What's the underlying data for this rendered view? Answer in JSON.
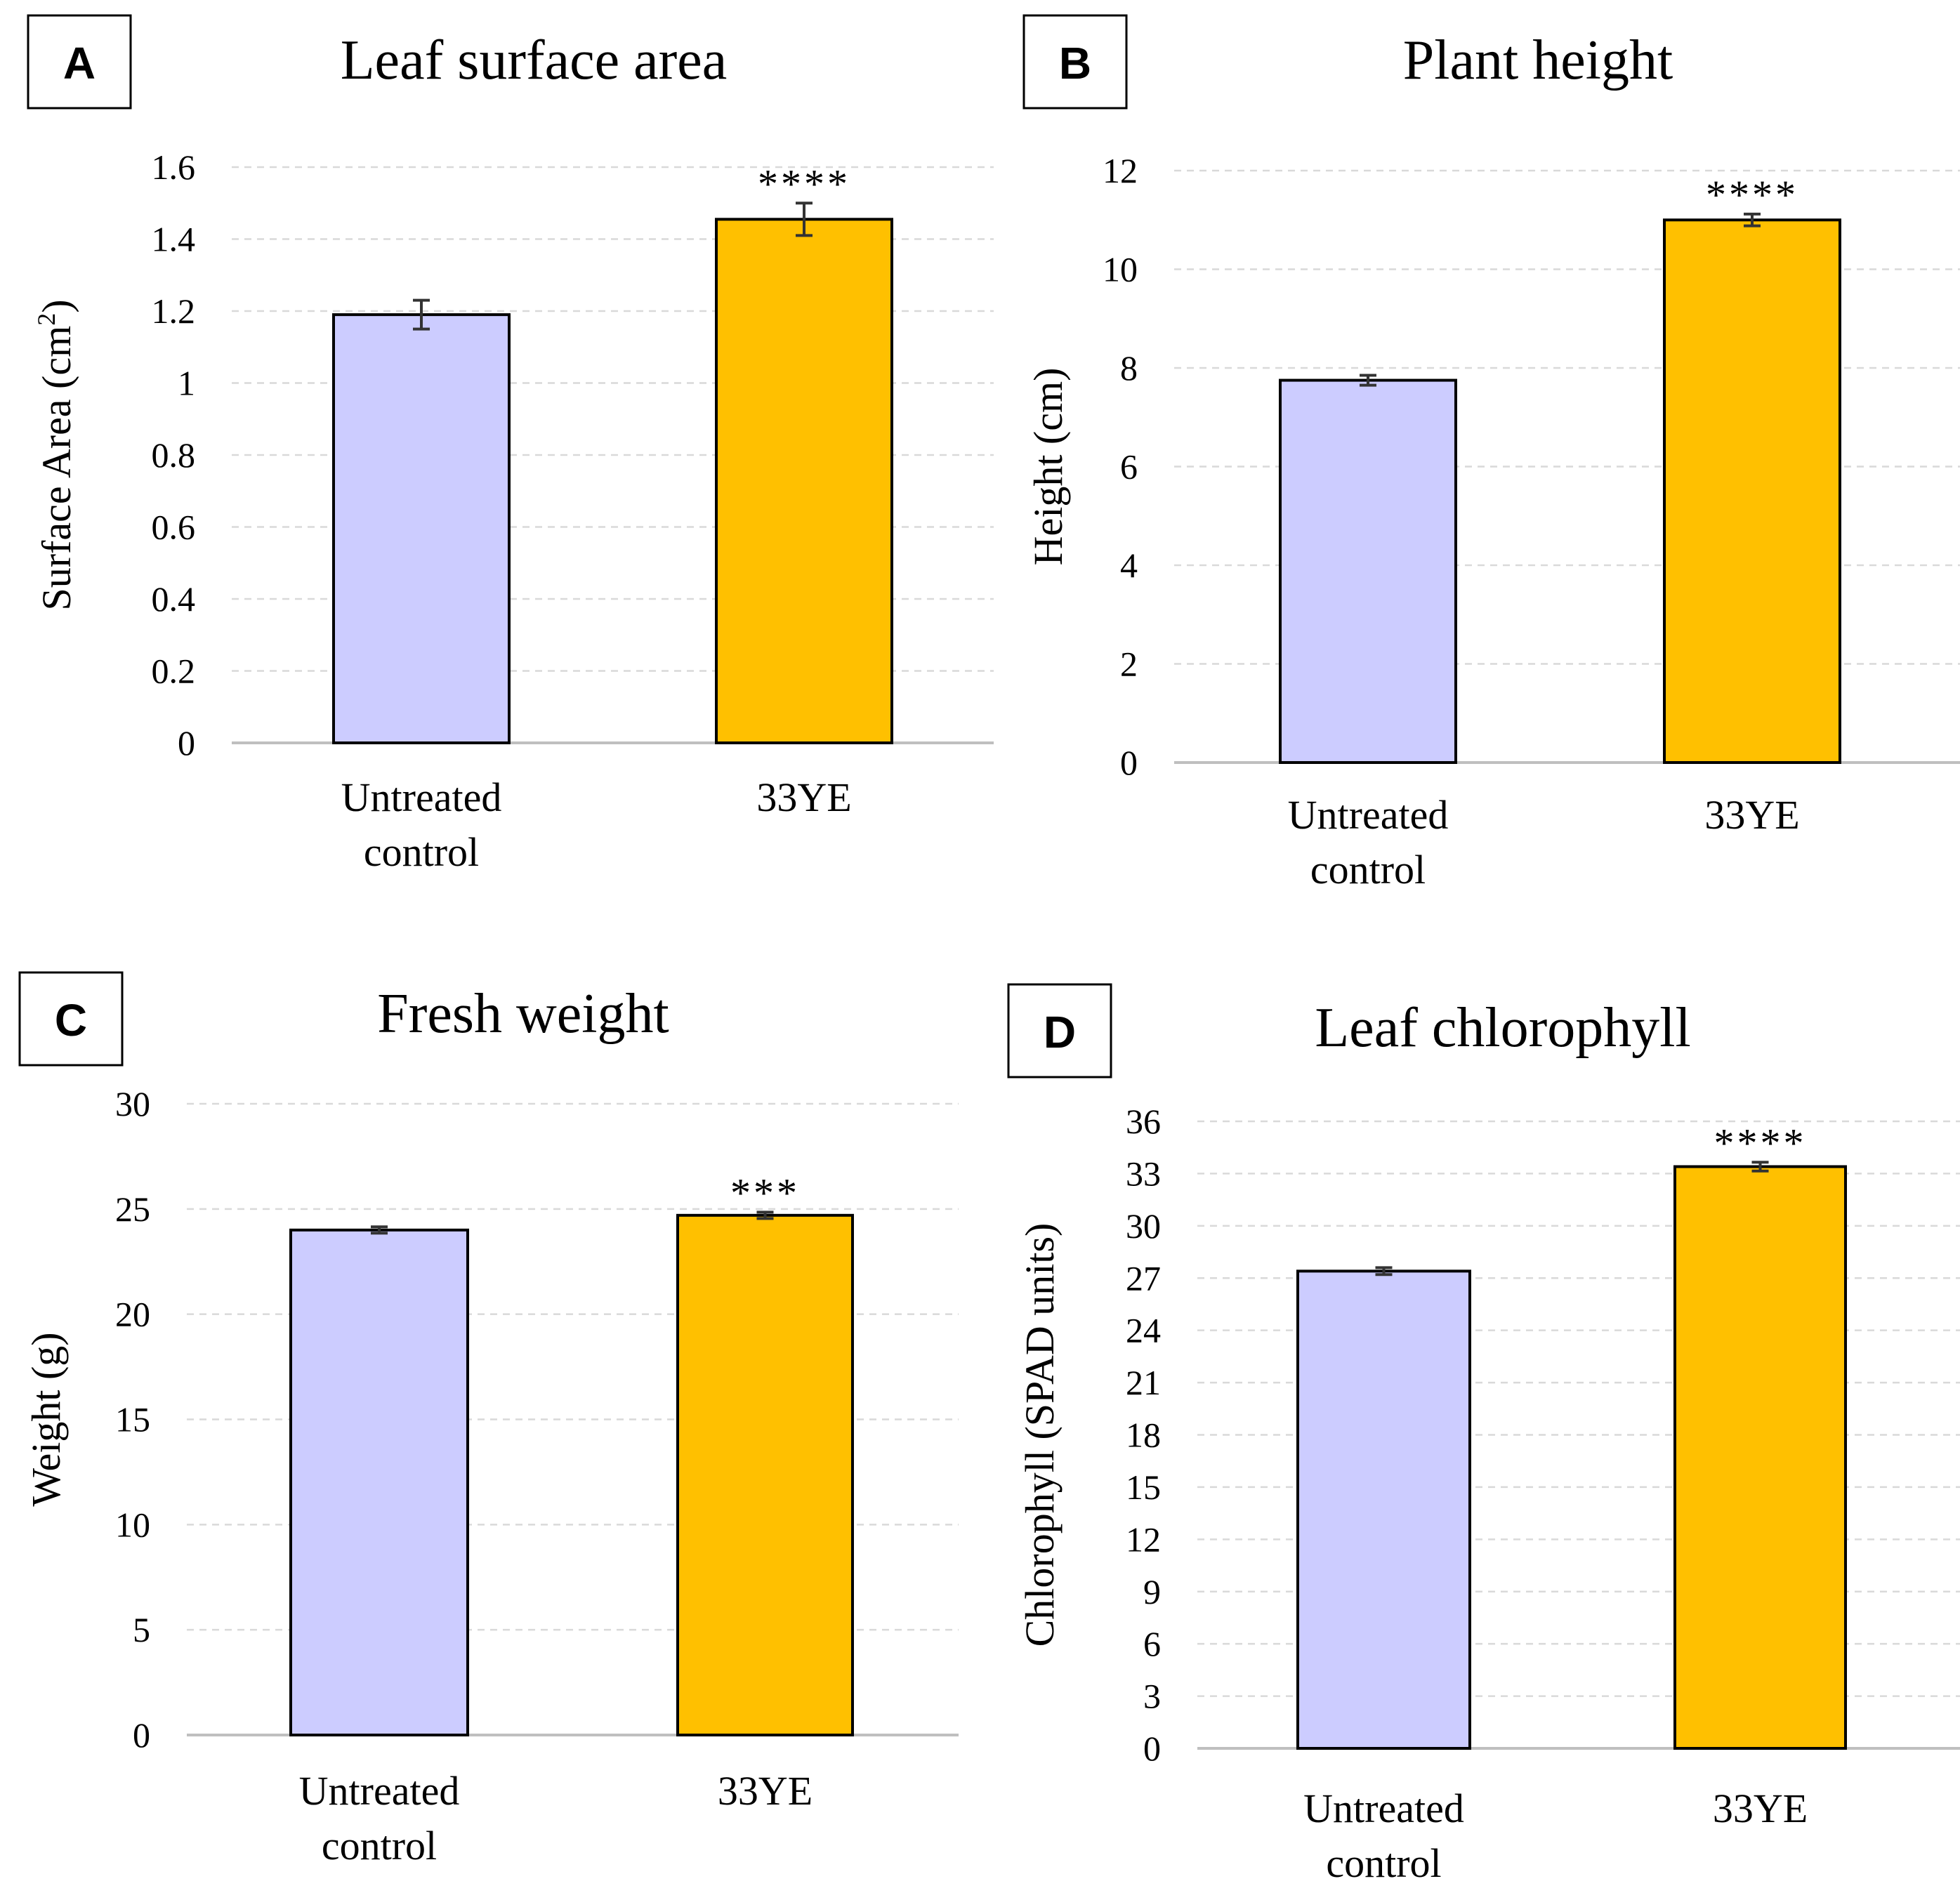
{
  "chart_data": [
    {
      "id": "A",
      "panel_label": "A",
      "type": "bar",
      "title": "Leaf surface area",
      "ylabel": "Surface Area (cm",
      "ylabel_sup": "2",
      "ylabel_end": ")",
      "ylim": [
        0,
        1.6
      ],
      "yticks": [
        "0",
        "0.2",
        "0.4",
        "0.6",
        "0.8",
        "1",
        "1.2",
        "1.4",
        "1.6"
      ],
      "categories": [
        [
          "Untreated",
          "control"
        ],
        [
          "33YE"
        ]
      ],
      "values": [
        1.19,
        1.455
      ],
      "errors": [
        0.04,
        0.045
      ],
      "significance": [
        "",
        "****"
      ],
      "colors": [
        "#ccccff",
        "#ffc000"
      ]
    },
    {
      "id": "B",
      "panel_label": "B",
      "type": "bar",
      "title": "Plant height",
      "ylabel": "Height (cm)",
      "ylim": [
        0,
        12
      ],
      "yticks": [
        "0",
        "2",
        "4",
        "6",
        "8",
        "10",
        "12"
      ],
      "categories": [
        [
          "Untreated",
          "control"
        ],
        [
          "33YE"
        ]
      ],
      "values": [
        7.75,
        11.0
      ],
      "errors": [
        0.1,
        0.12
      ],
      "significance": [
        "",
        "****"
      ],
      "colors": [
        "#ccccff",
        "#ffc000"
      ]
    },
    {
      "id": "C",
      "panel_label": "C",
      "type": "bar",
      "title": "Fresh weight",
      "ylabel": "Weight (g)",
      "ylim": [
        0,
        30
      ],
      "yticks": [
        "0",
        "5",
        "10",
        "15",
        "20",
        "25",
        "30"
      ],
      "categories": [
        [
          "Untreated",
          "control"
        ],
        [
          "33YE"
        ]
      ],
      "values": [
        24.0,
        24.7
      ],
      "errors": [
        0.15,
        0.15
      ],
      "significance": [
        "",
        "***"
      ],
      "colors": [
        "#ccccff",
        "#ffc000"
      ]
    },
    {
      "id": "D",
      "panel_label": "D",
      "type": "bar",
      "title": "Leaf chlorophyll",
      "ylabel": "Chlorophyll (SPAD units)",
      "ylim": [
        0,
        36
      ],
      "yticks": [
        "0",
        "3",
        "6",
        "9",
        "12",
        "15",
        "18",
        "21",
        "24",
        "27",
        "30",
        "33",
        "36"
      ],
      "categories": [
        [
          "Untreated",
          "control"
        ],
        [
          "33YE"
        ]
      ],
      "values": [
        27.4,
        33.4
      ],
      "errors": [
        0.2,
        0.25
      ],
      "significance": [
        "",
        "****"
      ],
      "colors": [
        "#ccccff",
        "#ffc000"
      ]
    }
  ]
}
